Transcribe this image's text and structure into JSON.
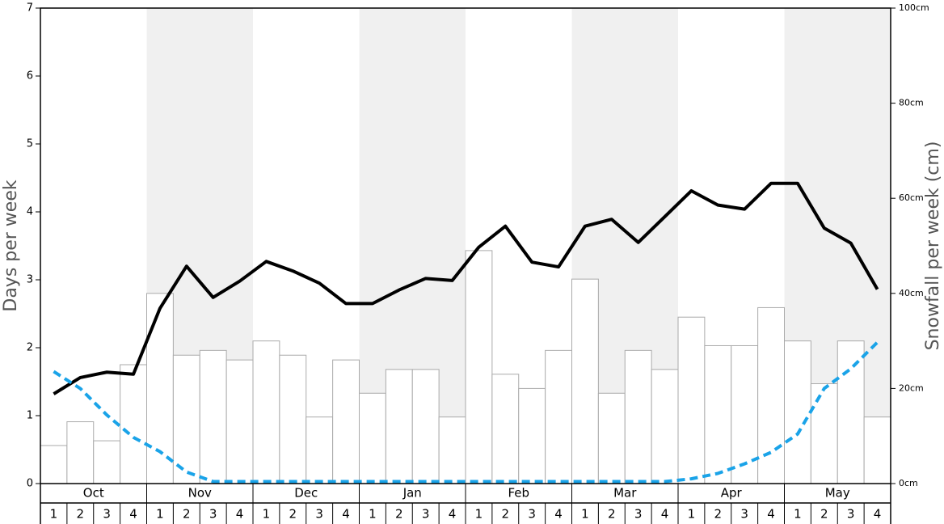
{
  "chart_data": {
    "type": "combo",
    "y_label": "Days per week",
    "y2_label": "Snowfall per week (cm)",
    "groups": [
      "Oct",
      "Nov",
      "Dec",
      "Jan",
      "Feb",
      "Mar",
      "Apr",
      "May"
    ],
    "categories": [
      "1",
      "2",
      "3",
      "4",
      "1",
      "2",
      "3",
      "4",
      "1",
      "2",
      "3",
      "4",
      "1",
      "2",
      "3",
      "4",
      "1",
      "2",
      "3",
      "4",
      "1",
      "2",
      "3",
      "4",
      "1",
      "2",
      "3",
      "4",
      "1",
      "2",
      "3",
      "4"
    ],
    "ylim": [
      0,
      7
    ],
    "yticks": [
      0,
      1,
      2,
      3,
      4,
      5,
      6,
      7
    ],
    "y2lim": [
      0,
      100
    ],
    "y2ticks": [
      {
        "value": 0,
        "label": "0cm"
      },
      {
        "value": 20,
        "label": "20cm"
      },
      {
        "value": 40,
        "label": "40cm"
      },
      {
        "value": 60,
        "label": "60cm"
      },
      {
        "value": 80,
        "label": "80cm"
      },
      {
        "value": 100,
        "label": "100cm"
      }
    ],
    "series": [
      {
        "type": "bar",
        "axis": "y2",
        "color": "#ffffff",
        "values": [
          8,
          13,
          9,
          25,
          40,
          27,
          28,
          26,
          30,
          27,
          14,
          26,
          19,
          24,
          24,
          14,
          49,
          23,
          20,
          28,
          43,
          19,
          28,
          24,
          35,
          29,
          29,
          37,
          30,
          21,
          30,
          14
        ]
      },
      {
        "type": "line",
        "color": "#000000",
        "dashed": false,
        "values": [
          1.32,
          1.56,
          1.64,
          1.61,
          2.58,
          3.2,
          2.74,
          2.98,
          3.27,
          3.13,
          2.95,
          2.65,
          2.65,
          2.85,
          3.02,
          2.99,
          3.48,
          3.79,
          3.26,
          3.19,
          3.79,
          3.89,
          3.55,
          3.93,
          4.31,
          4.1,
          4.04,
          4.42,
          4.42,
          3.76,
          3.54,
          2.86
        ]
      },
      {
        "type": "line",
        "color": "#1aa3e8",
        "dashed": true,
        "values": [
          1.65,
          1.4,
          1.01,
          0.68,
          0.47,
          0.17,
          0.03,
          0.03,
          0.03,
          0.03,
          0.03,
          0.03,
          0.03,
          0.03,
          0.03,
          0.03,
          0.03,
          0.03,
          0.03,
          0.03,
          0.03,
          0.03,
          0.03,
          0.03,
          0.07,
          0.15,
          0.29,
          0.46,
          0.73,
          1.4,
          1.69,
          2.08
        ]
      }
    ]
  }
}
